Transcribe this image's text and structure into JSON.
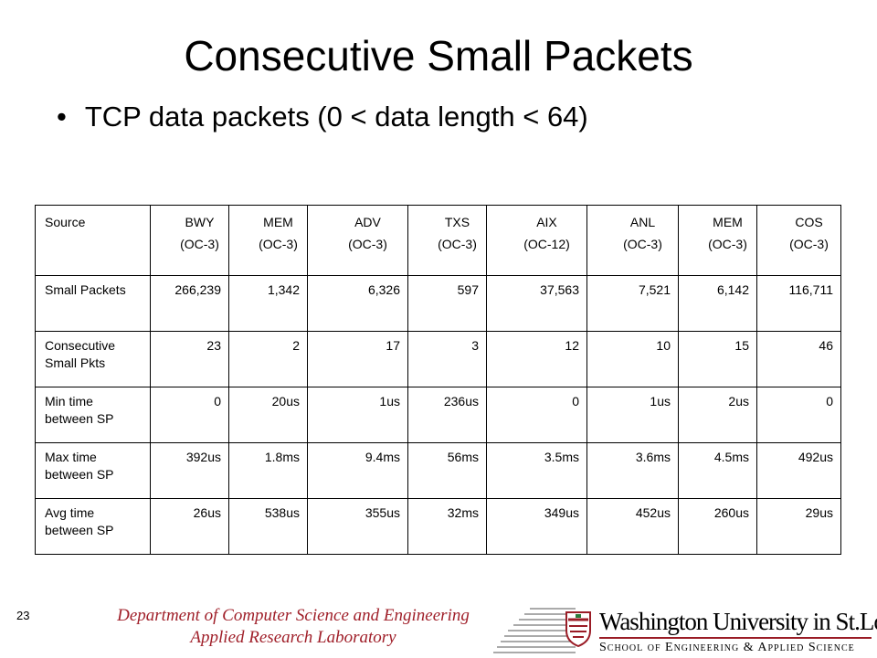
{
  "slide": {
    "title": "Consecutive Small Packets",
    "bullet": "TCP data packets (0 < data length < 64)",
    "number": "23"
  },
  "table": {
    "header_label": "Source",
    "columns": [
      {
        "name": "BWY",
        "link": "(OC-3)"
      },
      {
        "name": "MEM",
        "link": "(OC-3)"
      },
      {
        "name": "ADV",
        "link": "(OC-3)"
      },
      {
        "name": "TXS",
        "link": "(OC-3)"
      },
      {
        "name": "AIX",
        "link": "(OC-12)"
      },
      {
        "name": "ANL",
        "link": "(OC-3)"
      },
      {
        "name": "MEM",
        "link": "(OC-3)"
      },
      {
        "name": "COS",
        "link": "(OC-3)"
      }
    ],
    "rows": [
      {
        "label": "Small Packets",
        "values": [
          "266,239",
          "1,342",
          "6,326",
          "597",
          "37,563",
          "7,521",
          "6,142",
          "116,711"
        ]
      },
      {
        "label": "Consecutive Small Pkts",
        "values": [
          "23",
          "2",
          "17",
          "3",
          "12",
          "10",
          "15",
          "46"
        ]
      },
      {
        "label": "Min time between SP",
        "values": [
          "0",
          "20us",
          "1us",
          "236us",
          "0",
          "1us",
          "2us",
          "0"
        ]
      },
      {
        "label": "Max time between SP",
        "values": [
          "392us",
          "1.8ms",
          "9.4ms",
          "56ms",
          "3.5ms",
          "3.6ms",
          "4.5ms",
          "492us"
        ]
      },
      {
        "label": "Avg time between SP",
        "values": [
          "26us",
          "538us",
          "355us",
          "32ms",
          "349us",
          "452us",
          "260us",
          "29us"
        ]
      }
    ]
  },
  "footer": {
    "dept_line1": "Department of Computer Science and Engineering",
    "dept_line2": "Applied Research Laboratory",
    "logo_top": "Washington University in St.Louis",
    "logo_bottom": "School of Engineering & Applied Science",
    "accent_color": "#a0202a"
  }
}
